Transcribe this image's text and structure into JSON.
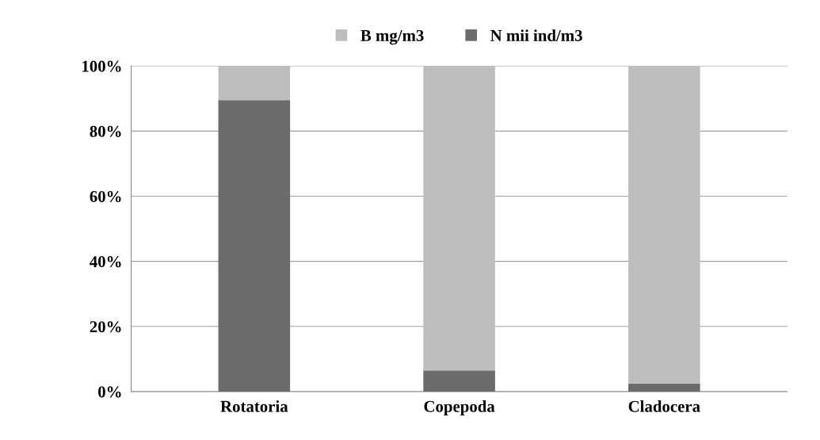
{
  "chart_data": {
    "type": "bar",
    "stacked": true,
    "categories": [
      "Rotatoria",
      "Copepoda",
      "Cladocera"
    ],
    "series": [
      {
        "name": "N mii ind/m3",
        "color": "#6b6b6b",
        "values": [
          89.5,
          6.5,
          2.5
        ]
      },
      {
        "name": "B mg/m3",
        "color": "#bdbdbd",
        "values": [
          10.5,
          93.5,
          97.5
        ]
      }
    ],
    "ylim": [
      0,
      100
    ],
    "yticks": [
      {
        "value": 0,
        "label": "0%"
      },
      {
        "value": 20,
        "label": "20%"
      },
      {
        "value": 40,
        "label": "40%"
      },
      {
        "value": 60,
        "label": "60%"
      },
      {
        "value": 80,
        "label": "80%"
      },
      {
        "value": 100,
        "label": "100%"
      }
    ],
    "grid": "y",
    "legend": "top"
  }
}
